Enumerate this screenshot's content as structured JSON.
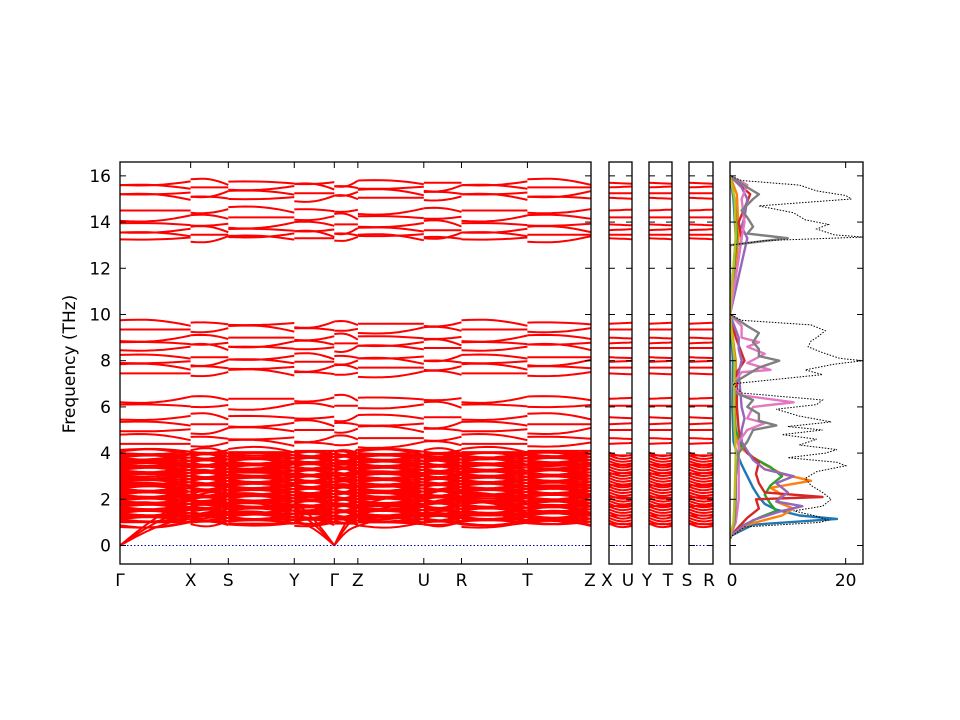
{
  "chart_data": {
    "type": "line",
    "title": "",
    "ylabel": "Frequency (THz)",
    "ylim": [
      -0.8,
      16.6
    ],
    "yticks": [
      0,
      2,
      4,
      6,
      8,
      10,
      12,
      14,
      16
    ],
    "band_color": "#ff0000",
    "zero_line_color": "#0000cc",
    "bands": {
      "flat": [
        0.95,
        1.3,
        1.7,
        2.1,
        2.6,
        3.1,
        3.5,
        3.9,
        4.4,
        4.65,
        5.0,
        5.25,
        5.55,
        6.05,
        6.35,
        7.45,
        7.7,
        7.95,
        8.15,
        8.55,
        8.75,
        9.0,
        9.35,
        9.6,
        13.3,
        13.45,
        13.65,
        13.9,
        14.2,
        14.5,
        15.05,
        15.25,
        15.5,
        15.7
      ],
      "acoustic": [
        {
          "gamma": 0,
          "x": 1.25,
          "s": 1.35,
          "y": 1.1,
          "z": 0.85,
          "u": 1.3,
          "r": 1.4,
          "t": 1.0
        },
        {
          "gamma": 0,
          "x": 1.65,
          "s": 1.8,
          "y": 1.5,
          "z": 1.3,
          "u": 1.75,
          "r": 1.9,
          "t": 1.4
        },
        {
          "gamma": 0,
          "x": 2.05,
          "s": 2.25,
          "y": 1.9,
          "z": 1.7,
          "u": 2.15,
          "r": 2.3,
          "t": 1.8
        }
      ]
    },
    "dispersion_panel": {
      "labels": [
        "Γ",
        "X",
        "S",
        "Y",
        "Γ",
        "Z",
        "U",
        "R",
        "T",
        "Z"
      ],
      "positions": [
        0,
        0.15,
        0.23,
        0.37,
        0.455,
        0.505,
        0.645,
        0.725,
        0.865,
        1.0
      ]
    },
    "small_panels": [
      {
        "labels": [
          "X",
          "U"
        ]
      },
      {
        "labels": [
          "Y",
          "T"
        ]
      },
      {
        "labels": [
          "S",
          "R"
        ]
      }
    ],
    "dos": {
      "xlim": [
        0,
        23
      ],
      "xticks": [
        0,
        20
      ],
      "total_style": "black dotted",
      "total": [
        [
          -0.6,
          0
        ],
        [
          0.2,
          0
        ],
        [
          0.4,
          0.3
        ],
        [
          0.8,
          2.5
        ],
        [
          1.0,
          15.5
        ],
        [
          1.1,
          17.0
        ],
        [
          1.3,
          14.5
        ],
        [
          1.5,
          11.0
        ],
        [
          1.7,
          16.0
        ],
        [
          2.0,
          17.5
        ],
        [
          2.3,
          16.0
        ],
        [
          2.6,
          14.0
        ],
        [
          2.9,
          13.0
        ],
        [
          3.2,
          15.0
        ],
        [
          3.45,
          20.0
        ],
        [
          3.6,
          18.5
        ],
        [
          3.8,
          10.0
        ],
        [
          4.0,
          16.5
        ],
        [
          4.15,
          18.5
        ],
        [
          4.35,
          12.0
        ],
        [
          4.6,
          15.0
        ],
        [
          4.8,
          9.0
        ],
        [
          5.0,
          16.0
        ],
        [
          5.15,
          10.0
        ],
        [
          5.35,
          17.5
        ],
        [
          5.6,
          12.0
        ],
        [
          5.9,
          8.0
        ],
        [
          6.1,
          15.0
        ],
        [
          6.3,
          16.0
        ],
        [
          6.6,
          2.0
        ],
        [
          7.0,
          0.5
        ],
        [
          7.4,
          16.0
        ],
        [
          7.6,
          13.0
        ],
        [
          7.85,
          18.0
        ],
        [
          8.0,
          23.0
        ],
        [
          8.1,
          19.0
        ],
        [
          8.35,
          16.0
        ],
        [
          8.6,
          13.5
        ],
        [
          8.85,
          14.0
        ],
        [
          9.0,
          15.0
        ],
        [
          9.3,
          16.5
        ],
        [
          9.55,
          14.0
        ],
        [
          9.75,
          2.0
        ],
        [
          10.0,
          0
        ],
        [
          13.0,
          0
        ],
        [
          13.2,
          6.0
        ],
        [
          13.35,
          23.0
        ],
        [
          13.45,
          18.0
        ],
        [
          13.7,
          15.0
        ],
        [
          13.9,
          17.0
        ],
        [
          14.1,
          13.0
        ],
        [
          14.4,
          11.0
        ],
        [
          14.7,
          5.0
        ],
        [
          15.0,
          21.0
        ],
        [
          15.15,
          20.0
        ],
        [
          15.35,
          15.0
        ],
        [
          15.6,
          12.0
        ],
        [
          15.8,
          2.0
        ],
        [
          16.0,
          0
        ]
      ],
      "partials": [
        {
          "color": "#1f77b4",
          "points": [
            [
              0.4,
              0
            ],
            [
              0.9,
              4
            ],
            [
              1.15,
              18.5
            ],
            [
              1.3,
              12
            ],
            [
              1.55,
              8
            ],
            [
              1.8,
              6
            ],
            [
              2.1,
              5
            ],
            [
              2.5,
              4
            ],
            [
              3.0,
              3
            ],
            [
              3.5,
              2
            ],
            [
              4.0,
              1.2
            ],
            [
              4.5,
              0.6
            ],
            [
              6.0,
              0.4
            ],
            [
              8.0,
              0.5
            ],
            [
              10,
              0
            ],
            [
              13.3,
              1.0
            ],
            [
              15,
              0.6
            ],
            [
              16,
              0
            ]
          ]
        },
        {
          "color": "#ff7f0e",
          "points": [
            [
              0.4,
              0
            ],
            [
              0.9,
              3
            ],
            [
              1.3,
              9
            ],
            [
              1.6,
              11
            ],
            [
              1.9,
              8
            ],
            [
              2.2,
              9
            ],
            [
              2.5,
              7
            ],
            [
              2.8,
              14
            ],
            [
              3.1,
              9
            ],
            [
              3.5,
              6
            ],
            [
              3.9,
              3.5
            ],
            [
              4.3,
              1.5
            ],
            [
              5.0,
              0.8
            ],
            [
              6.2,
              1
            ],
            [
              8.0,
              1
            ],
            [
              10,
              0
            ],
            [
              13.4,
              1.5
            ],
            [
              15.2,
              1.2
            ],
            [
              16,
              0
            ]
          ]
        },
        {
          "color": "#2ca02c",
          "points": [
            [
              0.4,
              0
            ],
            [
              0.9,
              2.5
            ],
            [
              1.2,
              5
            ],
            [
              1.5,
              8
            ],
            [
              1.8,
              7
            ],
            [
              2.2,
              6
            ],
            [
              2.6,
              7
            ],
            [
              3.0,
              9
            ],
            [
              3.4,
              7
            ],
            [
              3.8,
              4
            ],
            [
              4.3,
              2
            ],
            [
              5.0,
              1
            ],
            [
              6.0,
              0.7
            ],
            [
              8.0,
              0.8
            ],
            [
              10,
              0
            ],
            [
              13.4,
              1.2
            ],
            [
              15,
              0.8
            ],
            [
              16,
              0
            ]
          ]
        },
        {
          "color": "#d62728",
          "points": [
            [
              0.4,
              0
            ],
            [
              0.8,
              1.5
            ],
            [
              1.2,
              3
            ],
            [
              1.6,
              5
            ],
            [
              2.0,
              4.5
            ],
            [
              2.1,
              16
            ],
            [
              2.3,
              6
            ],
            [
              2.7,
              5
            ],
            [
              3.1,
              4.5
            ],
            [
              3.6,
              5
            ],
            [
              4.0,
              3
            ],
            [
              4.5,
              2
            ],
            [
              5.0,
              1.5
            ],
            [
              6.0,
              1.2
            ],
            [
              7.5,
              1.2
            ],
            [
              8.0,
              2.5
            ],
            [
              9.0,
              1
            ],
            [
              10,
              0
            ],
            [
              13.3,
              2
            ],
            [
              14.0,
              1.5
            ],
            [
              15.2,
              3.5
            ],
            [
              16,
              0
            ]
          ]
        },
        {
          "color": "#9467bd",
          "points": [
            [
              0.4,
              0
            ],
            [
              0.8,
              2
            ],
            [
              1.1,
              4
            ],
            [
              1.5,
              9
            ],
            [
              1.7,
              12.5
            ],
            [
              1.9,
              8
            ],
            [
              2.3,
              10
            ],
            [
              2.7,
              8
            ],
            [
              3.0,
              11
            ],
            [
              3.3,
              6
            ],
            [
              3.7,
              4
            ],
            [
              4.1,
              3
            ],
            [
              4.5,
              2
            ],
            [
              5.0,
              2
            ],
            [
              5.5,
              2.5
            ],
            [
              6.0,
              2
            ],
            [
              7.5,
              1.5
            ],
            [
              8.0,
              2
            ],
            [
              8.5,
              1.5
            ],
            [
              9.0,
              1.5
            ],
            [
              10,
              0
            ],
            [
              13.3,
              3
            ],
            [
              13.8,
              2
            ],
            [
              14.2,
              2.5
            ],
            [
              15.0,
              3
            ],
            [
              15.5,
              2
            ],
            [
              16,
              0
            ]
          ]
        },
        {
          "color": "#e377c2",
          "points": [
            [
              0.4,
              0
            ],
            [
              1.0,
              1
            ],
            [
              2.0,
              1.5
            ],
            [
              3.0,
              1.5
            ],
            [
              4.0,
              1.5
            ],
            [
              4.5,
              1.5
            ],
            [
              5.0,
              3
            ],
            [
              5.3,
              6
            ],
            [
              5.5,
              3
            ],
            [
              6.0,
              4
            ],
            [
              6.2,
              11
            ],
            [
              6.5,
              2
            ],
            [
              7.0,
              0.5
            ],
            [
              7.5,
              2
            ],
            [
              7.6,
              7
            ],
            [
              7.9,
              3
            ],
            [
              8.3,
              6
            ],
            [
              8.6,
              3
            ],
            [
              8.8,
              5
            ],
            [
              9.0,
              2
            ],
            [
              9.5,
              2
            ],
            [
              10,
              0
            ],
            [
              13.3,
              2
            ],
            [
              14.0,
              2.5
            ],
            [
              15.0,
              2
            ],
            [
              15.6,
              3
            ],
            [
              16,
              0
            ]
          ]
        },
        {
          "color": "#7f7f7f",
          "points": [
            [
              0.4,
              0
            ],
            [
              1.0,
              0.8
            ],
            [
              2.0,
              1
            ],
            [
              3.0,
              1
            ],
            [
              4.0,
              1.5
            ],
            [
              4.5,
              3
            ],
            [
              5.0,
              4
            ],
            [
              5.2,
              8
            ],
            [
              5.4,
              5
            ],
            [
              5.7,
              5
            ],
            [
              6.0,
              3
            ],
            [
              6.3,
              4
            ],
            [
              6.6,
              1
            ],
            [
              7.0,
              0.4
            ],
            [
              7.4,
              3
            ],
            [
              7.7,
              5
            ],
            [
              8.0,
              8.5
            ],
            [
              8.2,
              5
            ],
            [
              8.5,
              5
            ],
            [
              8.8,
              4
            ],
            [
              9.2,
              5
            ],
            [
              9.5,
              3
            ],
            [
              10,
              0
            ],
            [
              13.0,
              0
            ],
            [
              13.3,
              10
            ],
            [
              13.5,
              3
            ],
            [
              13.8,
              4
            ],
            [
              14.2,
              3
            ],
            [
              14.5,
              2
            ],
            [
              15.0,
              4
            ],
            [
              15.2,
              5
            ],
            [
              15.5,
              3
            ],
            [
              16,
              0
            ]
          ]
        },
        {
          "color": "#bcbd22",
          "points": [
            [
              0.4,
              0
            ],
            [
              1.0,
              0.6
            ],
            [
              2.0,
              0.8
            ],
            [
              3.0,
              0.9
            ],
            [
              4.0,
              1
            ],
            [
              5.0,
              0.8
            ],
            [
              6.0,
              0.7
            ],
            [
              8.0,
              0.8
            ],
            [
              10,
              0
            ],
            [
              13.4,
              1.0
            ],
            [
              15,
              0.8
            ],
            [
              16,
              0
            ]
          ]
        }
      ]
    }
  }
}
